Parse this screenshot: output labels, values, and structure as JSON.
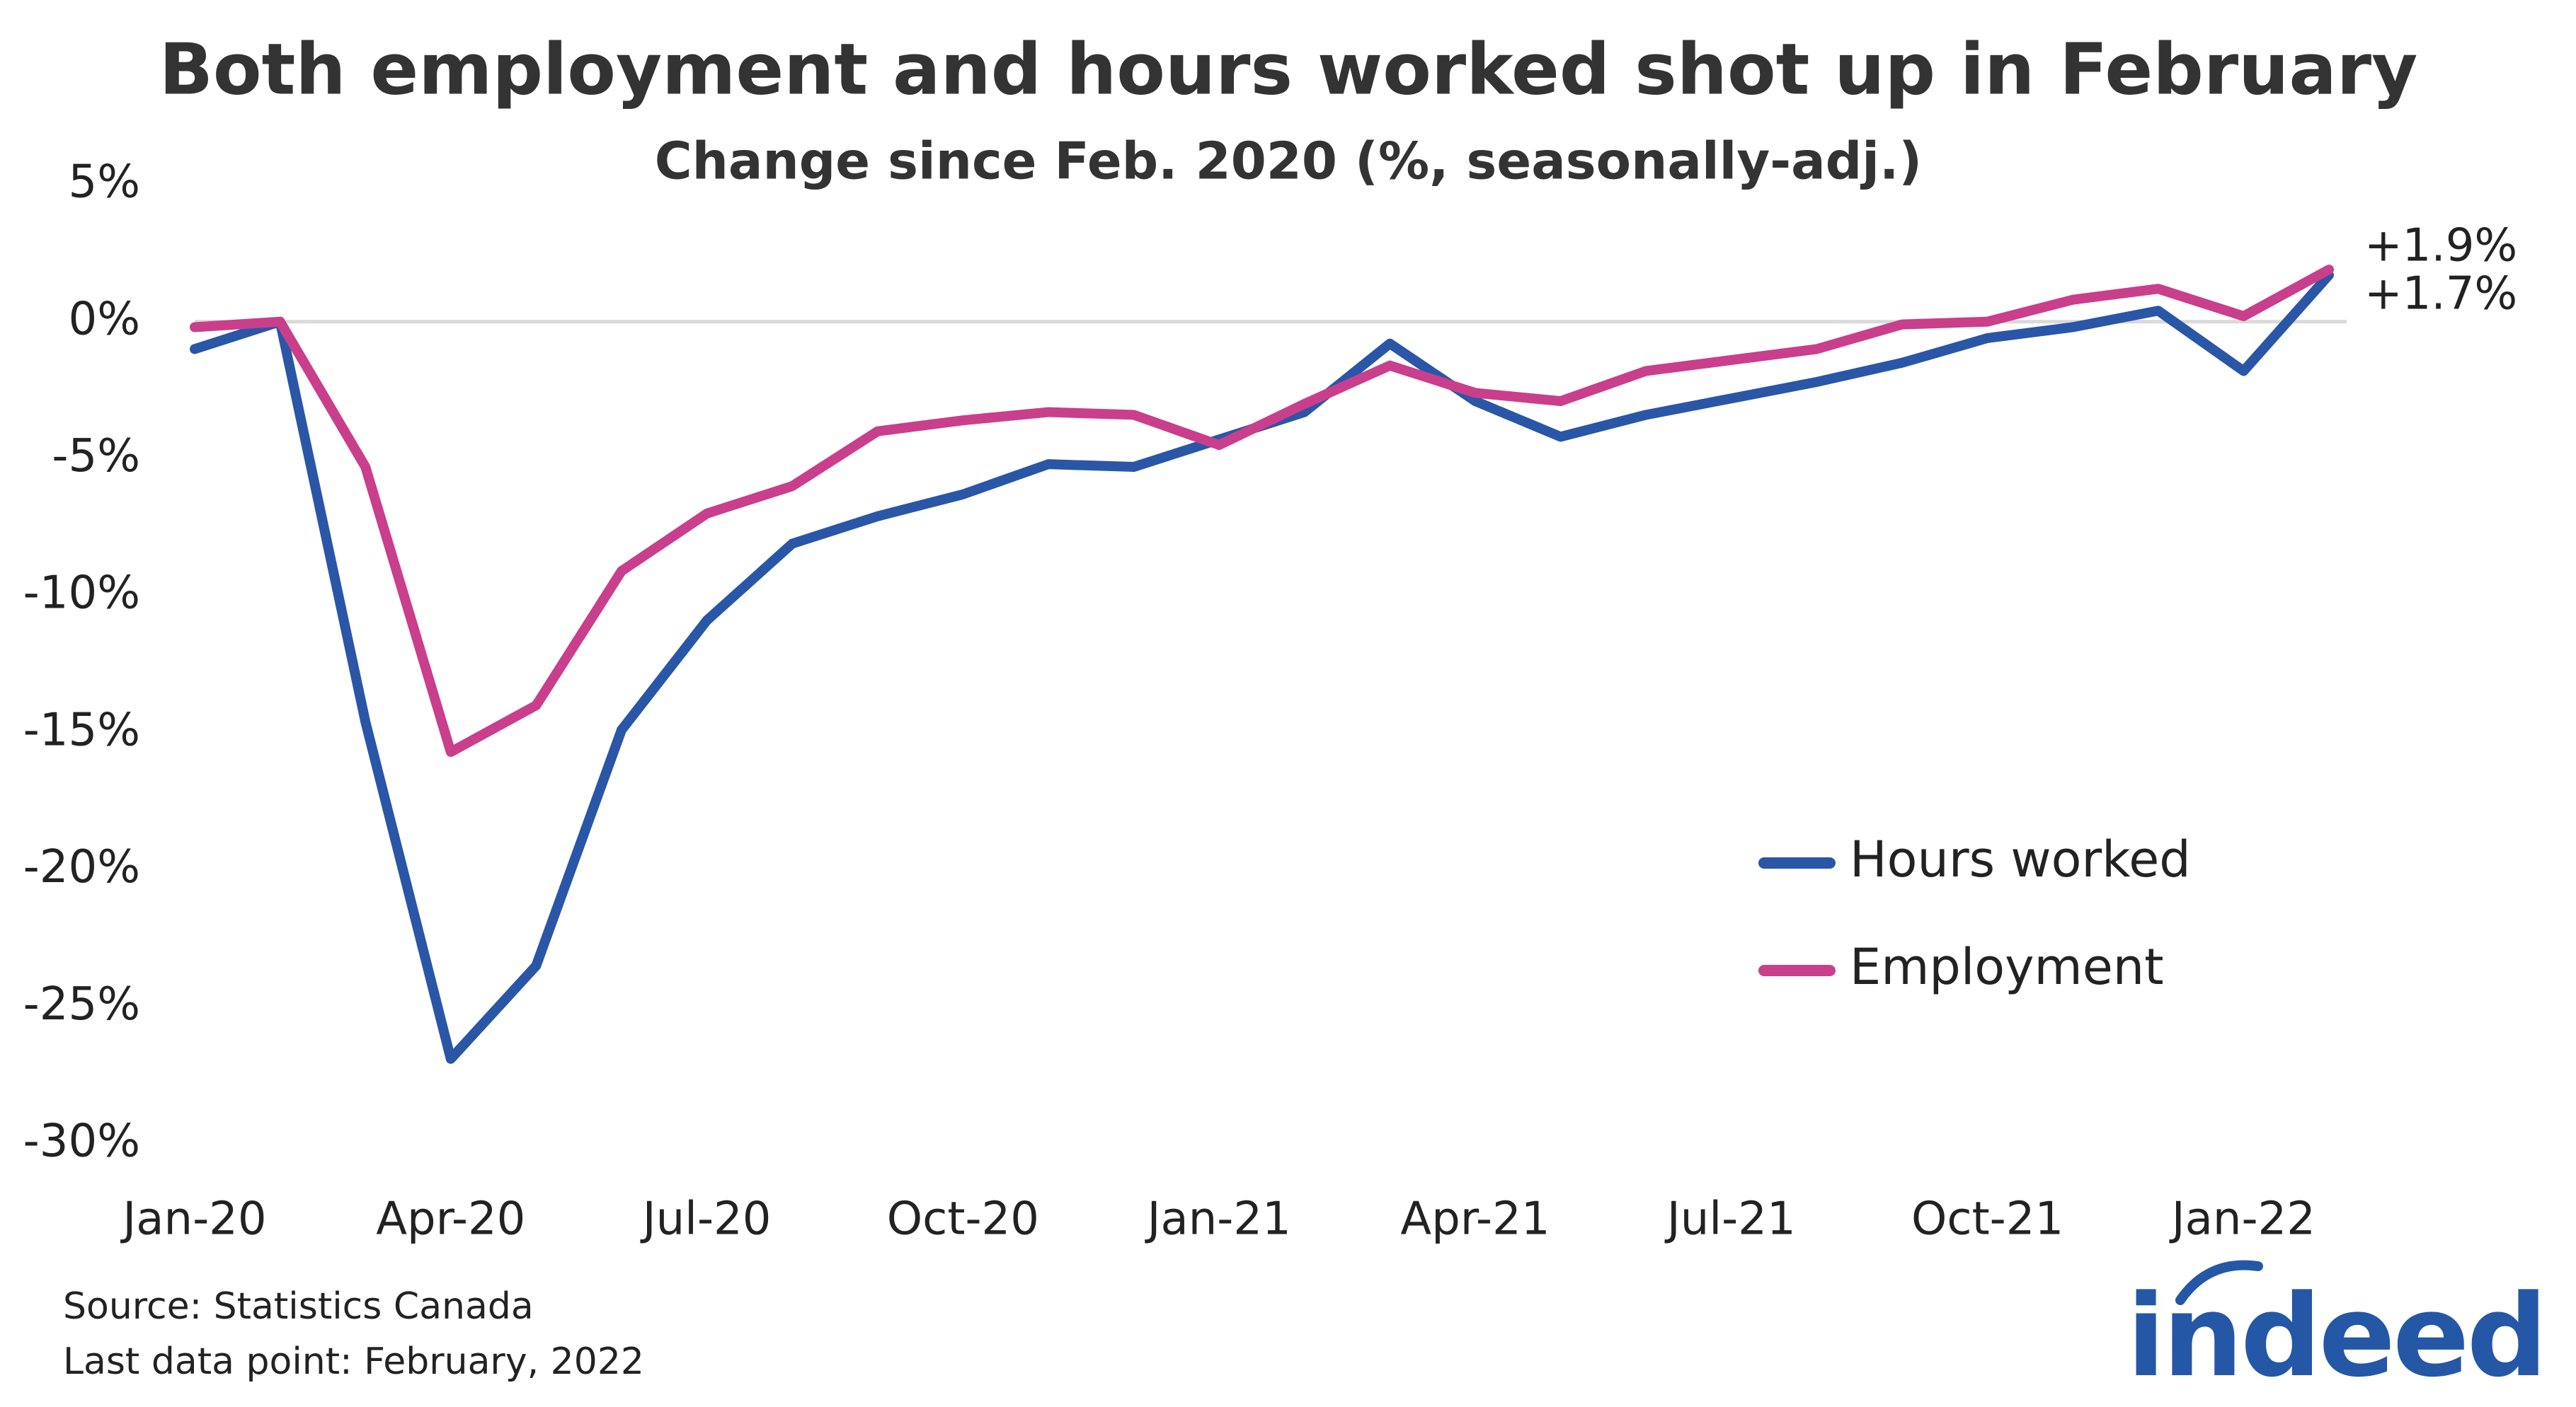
{
  "chart_data": {
    "type": "line",
    "title": "Both employment and hours worked shot up in February",
    "subtitle": "Change since Feb. 2020 (%, seasonally-adj.)",
    "categories": [
      "Jan-20",
      null,
      null,
      "Apr-20",
      null,
      null,
      "Jul-20",
      null,
      null,
      "Oct-20",
      null,
      null,
      "Jan-21",
      null,
      null,
      "Apr-21",
      null,
      null,
      "Jul-21",
      null,
      null,
      "Oct-21",
      null,
      null,
      "Jan-22",
      null
    ],
    "series": [
      {
        "name": "Hours worked",
        "color": "#2a56a8",
        "values": [
          -1.0,
          0,
          -14.6,
          -26.9,
          -23.5,
          -14.9,
          -10.9,
          -8.1,
          -7.1,
          -6.3,
          -5.2,
          -5.3,
          -4.3,
          -3.3,
          -0.8,
          -2.9,
          -4.2,
          -3.4,
          -2.8,
          -2.2,
          -1.5,
          -0.6,
          -0.2,
          0.4,
          -1.8,
          1.7
        ],
        "value_labels": [
          null,
          null,
          null,
          null,
          null,
          null,
          null,
          null,
          null,
          null,
          null,
          null,
          null,
          null,
          null,
          null,
          null,
          null,
          null,
          null,
          null,
          null,
          null,
          null,
          null,
          "+1.7%"
        ]
      },
      {
        "name": "Employment",
        "color": "#c93f8c",
        "values": [
          -0.2,
          0,
          -5.3,
          -15.7,
          -14.0,
          -9.1,
          -7.0,
          -6.0,
          -4.0,
          -3.6,
          -3.3,
          -3.4,
          -4.5,
          -3.0,
          -1.6,
          -2.6,
          -2.9,
          -1.8,
          -1.4,
          -1.0,
          -0.1,
          0,
          0.8,
          1.2,
          0.2,
          1.9
        ],
        "value_labels": [
          null,
          null,
          null,
          null,
          null,
          null,
          null,
          null,
          null,
          null,
          null,
          null,
          null,
          null,
          null,
          null,
          null,
          null,
          null,
          null,
          null,
          null,
          null,
          null,
          null,
          "+1.9%"
        ]
      }
    ],
    "ylim": [
      -30,
      5
    ],
    "yticks": [
      {
        "value": 5,
        "label": "5%"
      },
      {
        "value": 0,
        "label": "0%"
      },
      {
        "value": -5,
        "label": "-5%"
      },
      {
        "value": -10,
        "label": "-10%"
      },
      {
        "value": -15,
        "label": "-15%"
      },
      {
        "value": -20,
        "label": "-20%"
      },
      {
        "value": -25,
        "label": "-25%"
      },
      {
        "value": -30,
        "label": "-30%"
      }
    ],
    "zero_line": true,
    "legend": "lower right",
    "source": "Source: Statistics Canada",
    "note": "Last data point: February, 2022",
    "logo": "indeed"
  }
}
